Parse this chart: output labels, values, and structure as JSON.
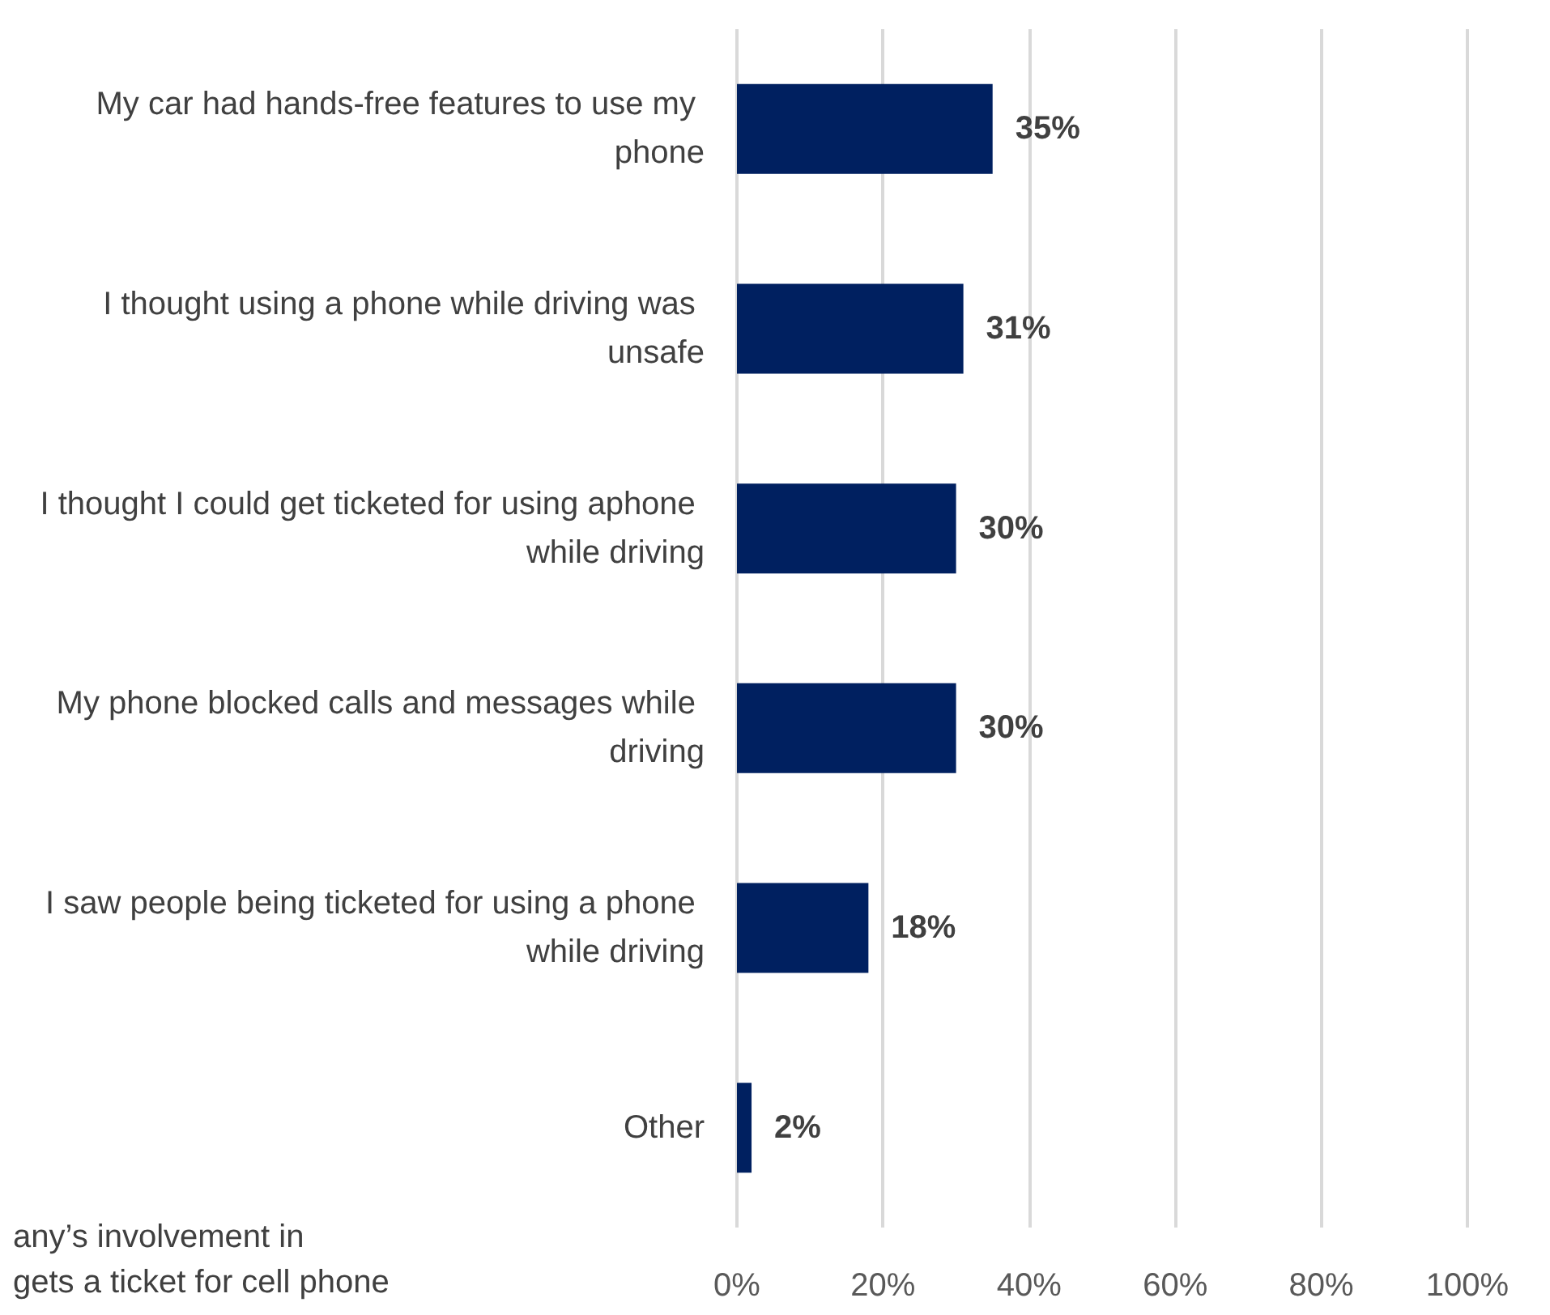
{
  "chart_data": {
    "type": "bar",
    "orientation": "horizontal",
    "categories": [
      "My car had hands-free features to use my phone",
      "I thought using a phone while driving was unsafe",
      "I thought I could get ticketed for using aphone while driving",
      "My phone blocked calls and messages while driving",
      "I saw people being ticketed for using a phone while driving",
      "Other"
    ],
    "values": [
      35,
      31,
      30,
      30,
      18,
      2
    ],
    "value_labels": [
      "35%",
      "31%",
      "30%",
      "30%",
      "18%",
      "2%"
    ],
    "color": "#002060",
    "xlim": [
      0,
      100
    ],
    "xticks": [
      {
        "value": 0,
        "label": "0%"
      },
      {
        "value": 20,
        "label": "20%"
      },
      {
        "value": 40,
        "label": "40%"
      },
      {
        "value": 60,
        "label": "60%"
      },
      {
        "value": 80,
        "label": "80%"
      },
      {
        "value": 100,
        "label": "100%"
      }
    ],
    "grid": "x",
    "annotations": [
      "any’s involvement in",
      "gets a ticket for cell phone"
    ]
  }
}
